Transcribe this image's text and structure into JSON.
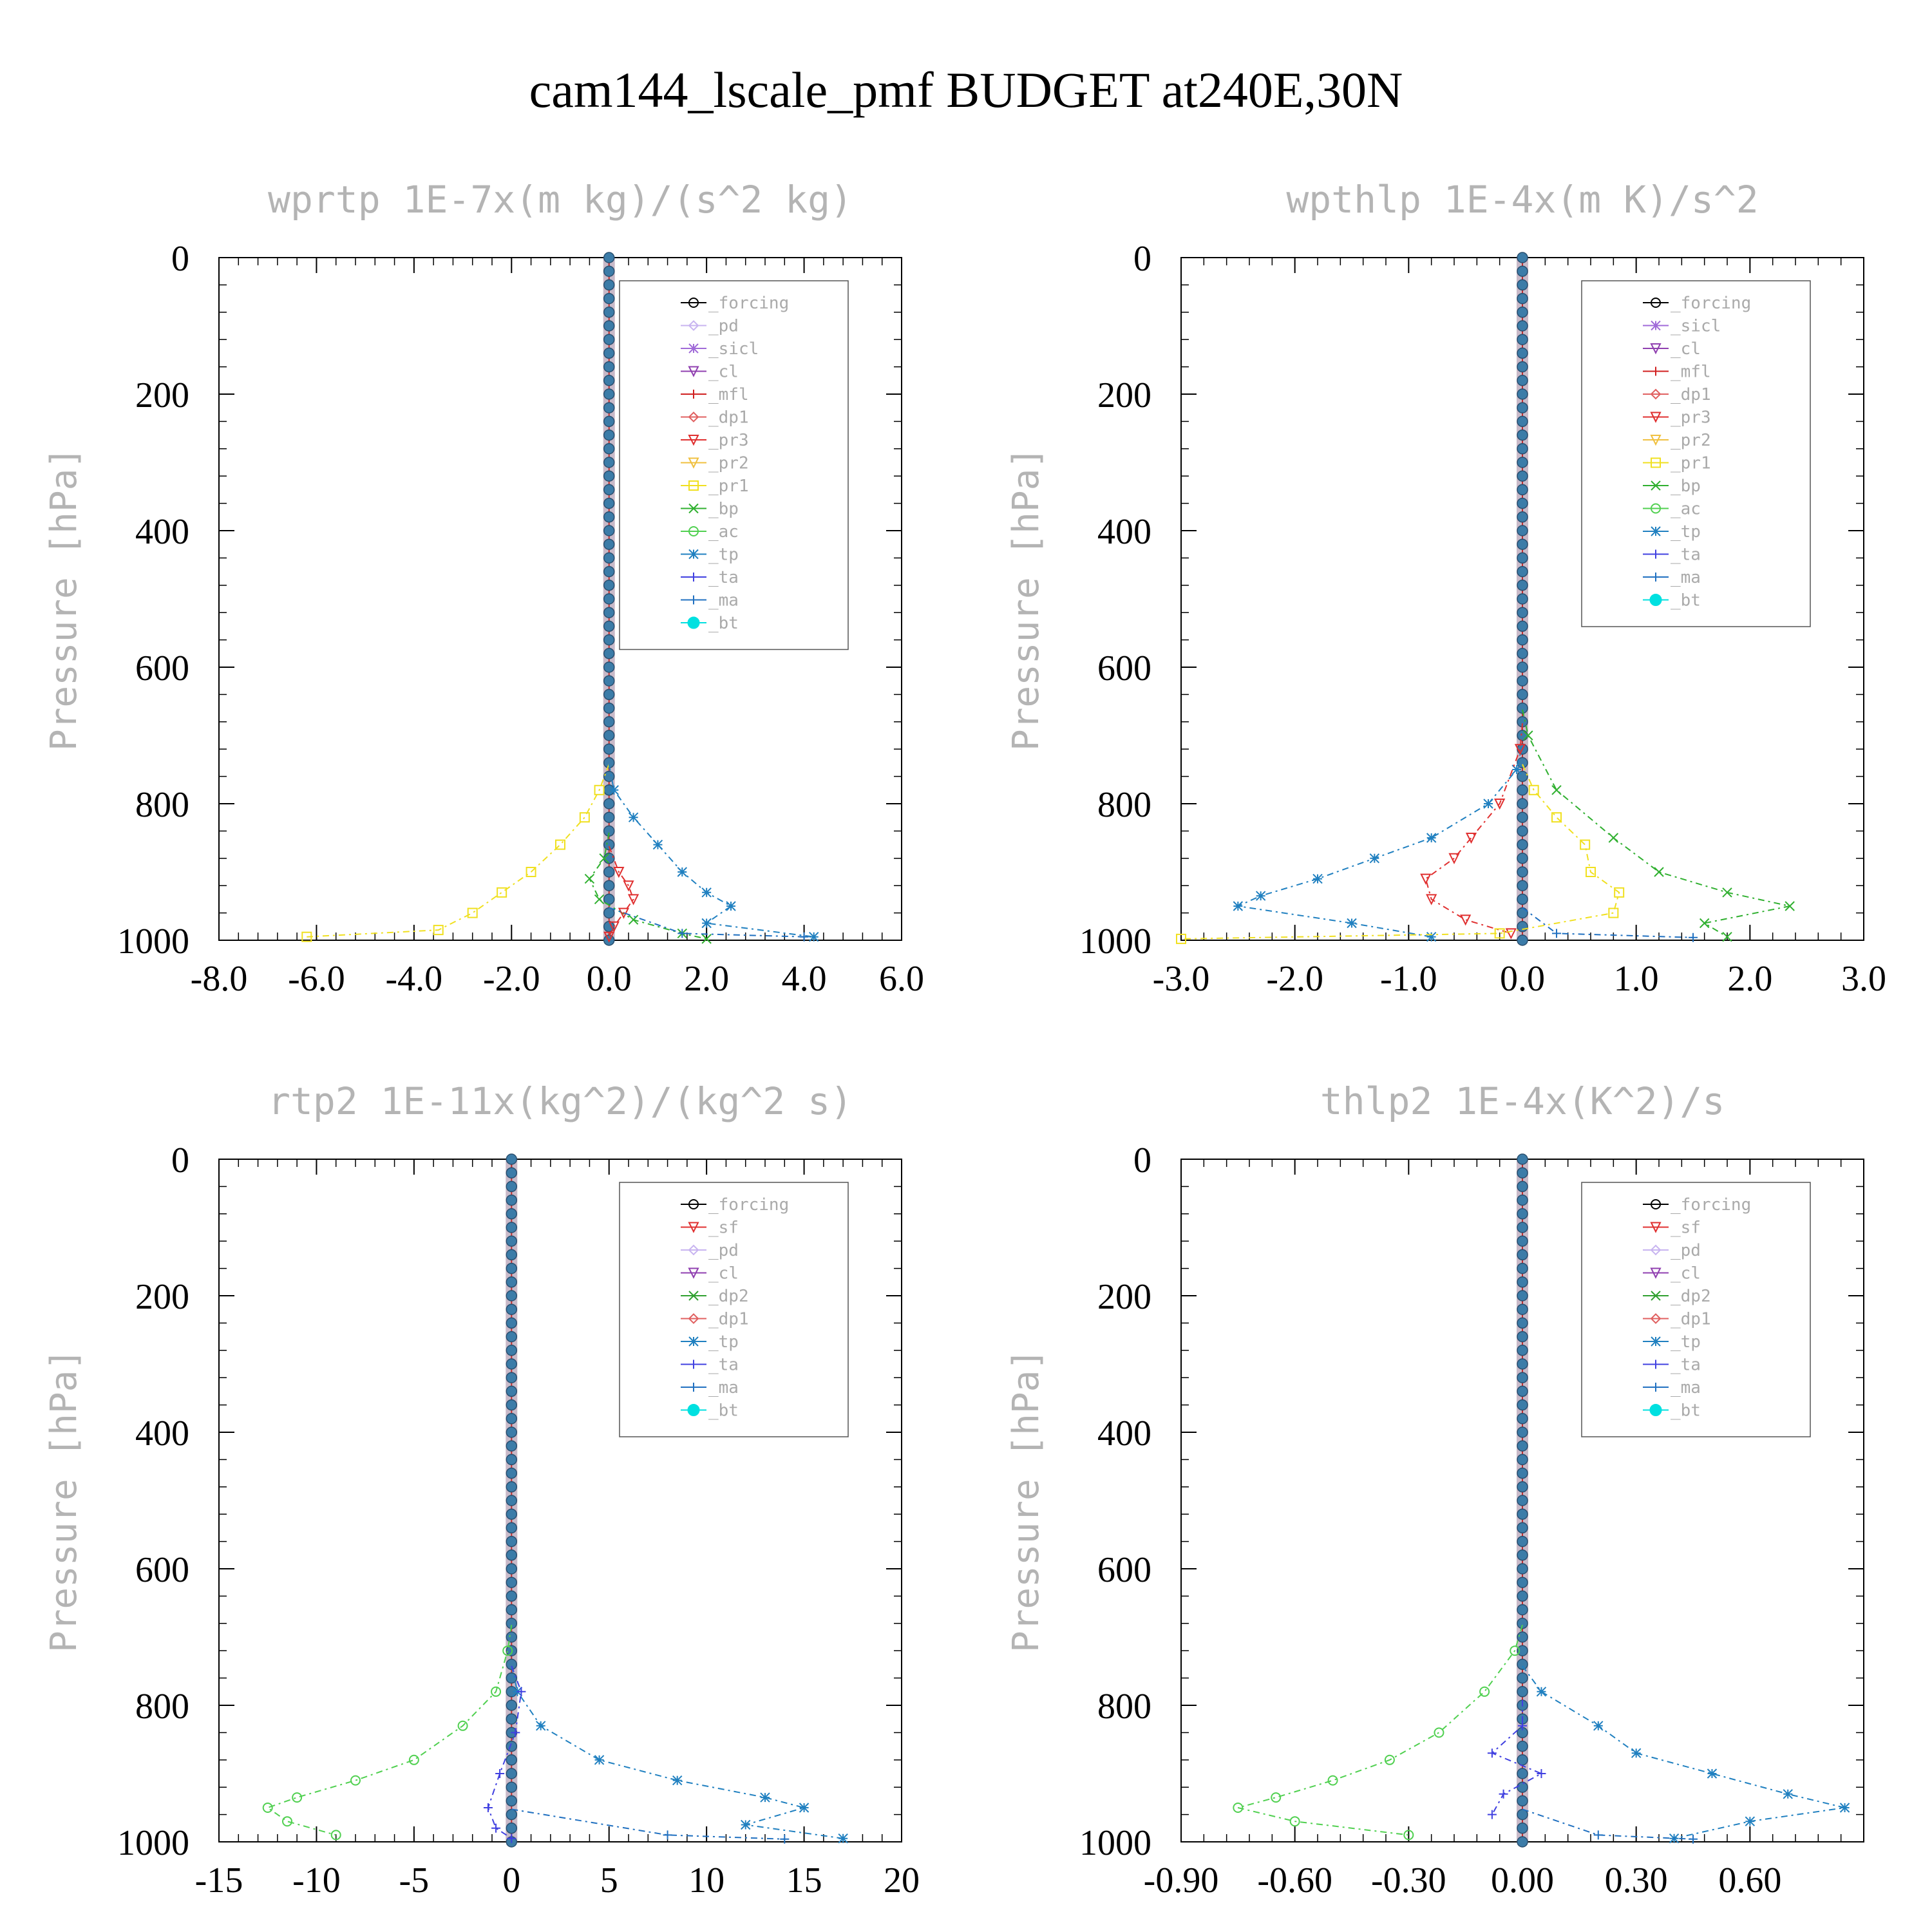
{
  "title": "cam144_lscale_pmf  BUDGET at240E,30N",
  "colors": {
    "forcing": "#000000",
    "pd": "#c8b4f0",
    "sicl": "#a06ad8",
    "cl": "#9040b0",
    "mfl": "#d02020",
    "dp1": "#e06060",
    "pr3": "#e03030",
    "pr2": "#f0c040",
    "pr1": "#f0e020",
    "bp": "#30b030",
    "ac": "#50d050",
    "tp": "#2080c0",
    "ta": "#4040e0",
    "ma": "#2070c0",
    "bt": "#00e0e0",
    "sf": "#e03030",
    "dp2": "#30a030",
    "axis_title": "#b4b4b4",
    "legend_text": "#aaaaaa"
  },
  "chart_data": [
    {
      "type": "line",
      "title": "wprtp  1E-7x(m kg)/(s^2 kg)",
      "ylabel": "Pressure [hPa]",
      "xlim": [
        -8,
        6
      ],
      "ylim": [
        1000,
        0
      ],
      "xticks": [
        -8,
        -6,
        -4,
        -2,
        0,
        2,
        4,
        6
      ],
      "xtick_labels": [
        "-8.0",
        "-6.0",
        "-4.0",
        "-2.0",
        "0.0",
        "2.0",
        "4.0",
        "6.0"
      ],
      "yticks": [
        0,
        200,
        400,
        600,
        800,
        1000
      ],
      "ytick_labels": [
        "0",
        "200",
        "400",
        "600",
        "800",
        "1000"
      ],
      "legend": [
        "_forcing",
        "_pd",
        "_sicl",
        "_cl",
        "_mfl",
        "_dp1",
        "_pr3",
        "_pr2",
        "_pr1",
        "_bp",
        "_ac",
        "_tp",
        "_ta",
        "_ma",
        "_bt"
      ],
      "series": [
        {
          "key": "pr1",
          "p": [
            780,
            820,
            860,
            900,
            930,
            960,
            985,
            995
          ],
          "v": [
            -0.2,
            -0.5,
            -1.0,
            -1.6,
            -2.2,
            -2.8,
            -3.5,
            -6.2
          ]
        },
        {
          "key": "tp",
          "p": [
            780,
            820,
            860,
            900,
            930,
            950,
            975,
            995
          ],
          "v": [
            0.1,
            0.5,
            1.0,
            1.5,
            2.0,
            2.5,
            2.0,
            4.2
          ]
        },
        {
          "key": "bp",
          "p": [
            880,
            910,
            940,
            970,
            990,
            998
          ],
          "v": [
            -0.1,
            -0.4,
            -0.2,
            0.5,
            1.5,
            2.0
          ]
        },
        {
          "key": "pr3",
          "p": [
            900,
            920,
            940,
            960,
            980,
            995
          ],
          "v": [
            0.2,
            0.4,
            0.5,
            0.3,
            0.1,
            0.0
          ]
        },
        {
          "key": "ma",
          "p": [
            990,
            995
          ],
          "v": [
            1.5,
            4.0
          ]
        }
      ]
    },
    {
      "type": "line",
      "title": "wpthlp  1E-4x(m K)/s^2",
      "ylabel": "Pressure [hPa]",
      "xlim": [
        -3,
        3
      ],
      "ylim": [
        1000,
        0
      ],
      "xticks": [
        -3,
        -2,
        -1,
        0,
        1,
        2,
        3
      ],
      "xtick_labels": [
        "-3.0",
        "-2.0",
        "-1.0",
        "0.0",
        "1.0",
        "2.0",
        "3.0"
      ],
      "yticks": [
        0,
        200,
        400,
        600,
        800,
        1000
      ],
      "ytick_labels": [
        "0",
        "200",
        "400",
        "600",
        "800",
        "1000"
      ],
      "legend": [
        "_forcing",
        "_sicl",
        "_cl",
        "_mfl",
        "_dp1",
        "_pr3",
        "_pr2",
        "_pr1",
        "_bp",
        "_ac",
        "_tp",
        "_ta",
        "_ma",
        "_bt"
      ],
      "series": [
        {
          "key": "bp",
          "p": [
            700,
            780,
            850,
            900,
            930,
            950,
            975,
            995
          ],
          "v": [
            0.05,
            0.3,
            0.8,
            1.2,
            1.8,
            2.35,
            1.6,
            1.8
          ]
        },
        {
          "key": "tp",
          "p": [
            750,
            800,
            850,
            880,
            910,
            935,
            950,
            975,
            995
          ],
          "v": [
            -0.05,
            -0.3,
            -0.8,
            -1.3,
            -1.8,
            -2.3,
            -2.5,
            -1.5,
            -0.8
          ]
        },
        {
          "key": "pr3",
          "p": [
            720,
            800,
            850,
            880,
            910,
            940,
            970,
            990
          ],
          "v": [
            -0.02,
            -0.2,
            -0.45,
            -0.6,
            -0.85,
            -0.8,
            -0.5,
            -0.1
          ]
        },
        {
          "key": "pr1",
          "p": [
            780,
            820,
            860,
            900,
            930,
            960,
            990,
            998
          ],
          "v": [
            0.1,
            0.3,
            0.55,
            0.6,
            0.85,
            0.8,
            -0.2,
            -3.0
          ]
        },
        {
          "key": "ma",
          "p": [
            990,
            996
          ],
          "v": [
            0.3,
            1.5
          ]
        }
      ]
    },
    {
      "type": "line",
      "title": "rtp2  1E-11x(kg^2)/(kg^2 s)",
      "ylabel": "Pressure [hPa]",
      "xlim": [
        -15,
        20
      ],
      "ylim": [
        1000,
        0
      ],
      "xticks": [
        -15,
        -10,
        -5,
        0,
        5,
        10,
        15,
        20
      ],
      "xtick_labels": [
        "-15",
        "-10",
        "-5",
        "0",
        "5",
        "10",
        "15",
        "20"
      ],
      "yticks": [
        0,
        200,
        400,
        600,
        800,
        1000
      ],
      "ytick_labels": [
        "0",
        "200",
        "400",
        "600",
        "800",
        "1000"
      ],
      "legend": [
        "_forcing",
        "_sf",
        "_pd",
        "_cl",
        "_dp2",
        "_dp1",
        "_tp",
        "_ta",
        "_ma",
        "_bt"
      ],
      "series": [
        {
          "key": "ac",
          "p": [
            720,
            780,
            830,
            880,
            910,
            935,
            950,
            970,
            990
          ],
          "v": [
            -0.2,
            -0.8,
            -2.5,
            -5.0,
            -8.0,
            -11.0,
            -12.5,
            -11.5,
            -9.0
          ]
        },
        {
          "key": "tp",
          "p": [
            780,
            830,
            880,
            910,
            935,
            950,
            975,
            995
          ],
          "v": [
            0.3,
            1.5,
            4.5,
            8.5,
            13.0,
            15.0,
            12.0,
            17.0
          ]
        },
        {
          "key": "ta",
          "p": [
            780,
            840,
            900,
            950,
            980,
            995
          ],
          "v": [
            0.5,
            0.2,
            -0.6,
            -1.2,
            -0.8,
            0.0
          ]
        },
        {
          "key": "ma",
          "p": [
            990,
            996
          ],
          "v": [
            8.0,
            14.0
          ]
        }
      ]
    },
    {
      "type": "line",
      "title": "thlp2  1E-4x(K^2)/s",
      "ylabel": "Pressure [hPa]",
      "xlim": [
        -0.9,
        0.9
      ],
      "ylim": [
        1000,
        0
      ],
      "xticks": [
        -0.9,
        -0.6,
        -0.3,
        0.0,
        0.3,
        0.6
      ],
      "xtick_labels": [
        "-0.90",
        "-0.60",
        "-0.30",
        "0.00",
        "0.30",
        "0.60"
      ],
      "yticks": [
        0,
        200,
        400,
        600,
        800,
        1000
      ],
      "ytick_labels": [
        "0",
        "200",
        "400",
        "600",
        "800",
        "1000"
      ],
      "legend": [
        "_forcing",
        "_sf",
        "_pd",
        "_cl",
        "_dp2",
        "_dp1",
        "_tp",
        "_ta",
        "_ma",
        "_bt"
      ],
      "series": [
        {
          "key": "ac",
          "p": [
            720,
            780,
            840,
            880,
            910,
            935,
            950,
            970,
            990
          ],
          "v": [
            -0.02,
            -0.1,
            -0.22,
            -0.35,
            -0.5,
            -0.65,
            -0.75,
            -0.6,
            -0.3
          ]
        },
        {
          "key": "tp",
          "p": [
            780,
            830,
            870,
            900,
            930,
            950,
            970,
            995
          ],
          "v": [
            0.05,
            0.2,
            0.3,
            0.5,
            0.7,
            0.85,
            0.6,
            0.4
          ]
        },
        {
          "key": "ta",
          "p": [
            830,
            870,
            900,
            930,
            960
          ],
          "v": [
            0.0,
            -0.08,
            0.05,
            -0.05,
            -0.08
          ]
        },
        {
          "key": "ma",
          "p": [
            990,
            996
          ],
          "v": [
            0.2,
            0.45
          ]
        }
      ]
    }
  ]
}
